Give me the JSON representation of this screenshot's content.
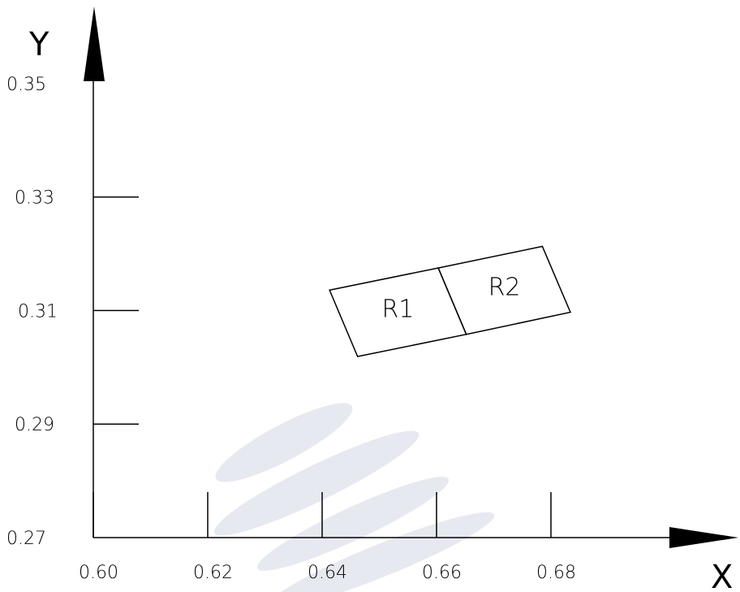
{
  "chart_data": {
    "type": "diagram",
    "xlabel": "X",
    "ylabel": "Y",
    "x_ticks": [
      "0.60",
      "0.62",
      "0.64",
      "0.66",
      "0.68"
    ],
    "y_ticks": [
      "0.27",
      "0.29",
      "0.31",
      "0.33",
      "0.35"
    ],
    "xlim": [
      0.6,
      0.7
    ],
    "ylim": [
      0.27,
      0.35
    ],
    "regions": [
      {
        "name": "R1",
        "vertices": [
          [
            0.6413,
            0.3136
          ],
          [
            0.6603,
            0.3175
          ],
          [
            0.6652,
            0.3058
          ],
          [
            0.6462,
            0.3019
          ]
        ]
      },
      {
        "name": "R2",
        "vertices": [
          [
            0.6603,
            0.3175
          ],
          [
            0.6785,
            0.3213
          ],
          [
            0.6834,
            0.3097
          ],
          [
            0.6652,
            0.3058
          ]
        ]
      }
    ],
    "grid": false,
    "colors": {
      "lines": "#000000",
      "watermark": "#e3e5ef"
    }
  }
}
